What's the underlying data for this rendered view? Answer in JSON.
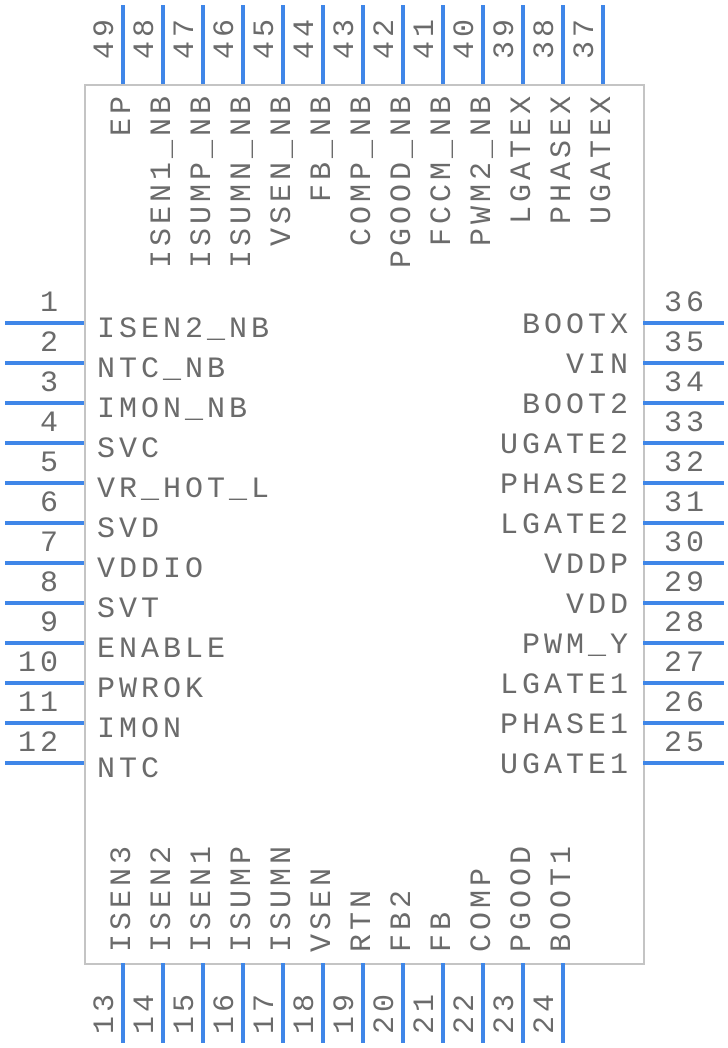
{
  "component": {
    "pin_color": "#3f86e8",
    "outline_color": "#c4c4c4",
    "left_pins": [
      {
        "num": "1",
        "name": "ISEN2_NB"
      },
      {
        "num": "2",
        "name": "NTC_NB"
      },
      {
        "num": "3",
        "name": "IMON_NB"
      },
      {
        "num": "4",
        "name": "SVC"
      },
      {
        "num": "5",
        "name": "VR_HOT_L"
      },
      {
        "num": "6",
        "name": "SVD"
      },
      {
        "num": "7",
        "name": "VDDIO"
      },
      {
        "num": "8",
        "name": "SVT"
      },
      {
        "num": "9",
        "name": "ENABLE"
      },
      {
        "num": "10",
        "name": "PWROK"
      },
      {
        "num": "11",
        "name": "IMON"
      },
      {
        "num": "12",
        "name": "NTC"
      }
    ],
    "right_pins": [
      {
        "num": "36",
        "name": "BOOTX"
      },
      {
        "num": "35",
        "name": "VIN"
      },
      {
        "num": "34",
        "name": "BOOT2"
      },
      {
        "num": "33",
        "name": "UGATE2"
      },
      {
        "num": "32",
        "name": "PHASE2"
      },
      {
        "num": "31",
        "name": "LGATE2"
      },
      {
        "num": "30",
        "name": "VDDP"
      },
      {
        "num": "29",
        "name": "VDD"
      },
      {
        "num": "28",
        "name": "PWM_Y"
      },
      {
        "num": "27",
        "name": "LGATE1"
      },
      {
        "num": "26",
        "name": "PHASE1"
      },
      {
        "num": "25",
        "name": "UGATE1"
      }
    ],
    "top_pins": [
      {
        "num": "49",
        "name": "EP"
      },
      {
        "num": "48",
        "name": "ISEN1_NB"
      },
      {
        "num": "47",
        "name": "ISUMP_NB"
      },
      {
        "num": "46",
        "name": "ISUMN_NB"
      },
      {
        "num": "45",
        "name": "VSEN_NB"
      },
      {
        "num": "44",
        "name": "FB_NB"
      },
      {
        "num": "43",
        "name": "COMP_NB"
      },
      {
        "num": "42",
        "name": "PGOOD_NB"
      },
      {
        "num": "41",
        "name": "FCCM_NB"
      },
      {
        "num": "40",
        "name": "PWM2_NB"
      },
      {
        "num": "39",
        "name": "LGATEX"
      },
      {
        "num": "38",
        "name": "PHASEX"
      },
      {
        "num": "37",
        "name": "UGATEX"
      }
    ],
    "bottom_pins": [
      {
        "num": "13",
        "name": "ISEN3"
      },
      {
        "num": "14",
        "name": "ISEN2"
      },
      {
        "num": "15",
        "name": "ISEN1"
      },
      {
        "num": "16",
        "name": "ISUMP"
      },
      {
        "num": "17",
        "name": "ISUMN"
      },
      {
        "num": "18",
        "name": "VSEN"
      },
      {
        "num": "19",
        "name": "RTN"
      },
      {
        "num": "20",
        "name": "FB2"
      },
      {
        "num": "21",
        "name": "FB"
      },
      {
        "num": "22",
        "name": "COMP"
      },
      {
        "num": "23",
        "name": "PGOOD"
      },
      {
        "num": "24",
        "name": "BOOT1"
      }
    ]
  }
}
